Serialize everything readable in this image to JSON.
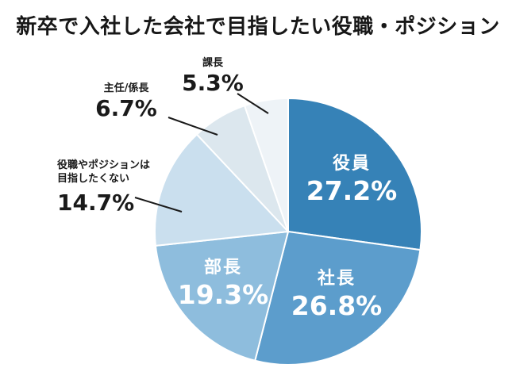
{
  "title": "新卒で入社した会社で目指したい役職・ポジション",
  "colors": {
    "background": "#FFFFFF",
    "title_text": "#171717",
    "inside_label_text": "#FFFFFF",
    "outside_label_text": "#1A1A1A",
    "leader_line": "#1A1A1A",
    "slice_separator": "#FFFFFF"
  },
  "chart_data": {
    "type": "pie",
    "title": "新卒で入社した会社で目指したい役職・ポジション",
    "unit": "%",
    "total": 100,
    "start_angle_deg": 0,
    "direction": "clockwise",
    "legend": "none",
    "slices": [
      {
        "label": "役員",
        "value": 27.2,
        "display": "27.2%",
        "color": "#3682B7",
        "label_placement": "inside"
      },
      {
        "label": "社長",
        "value": 26.8,
        "display": "26.8%",
        "color": "#5C9DCC",
        "label_placement": "inside"
      },
      {
        "label": "部長",
        "value": 19.3,
        "display": "19.3%",
        "color": "#8EBDDD",
        "label_placement": "inside"
      },
      {
        "label": "役職やポジションは目指したくない",
        "label_lines": [
          "役職やポジションは",
          "目指したくない"
        ],
        "value": 14.7,
        "display": "14.7%",
        "color": "#CADFEE",
        "label_placement": "outside"
      },
      {
        "label": "主任/係長",
        "value": 6.7,
        "display": "6.7%",
        "color": "#DCE7EE",
        "label_placement": "outside"
      },
      {
        "label": "課長",
        "value": 5.3,
        "display": "5.3%",
        "color": "#EEF3F7",
        "label_placement": "outside"
      }
    ]
  }
}
